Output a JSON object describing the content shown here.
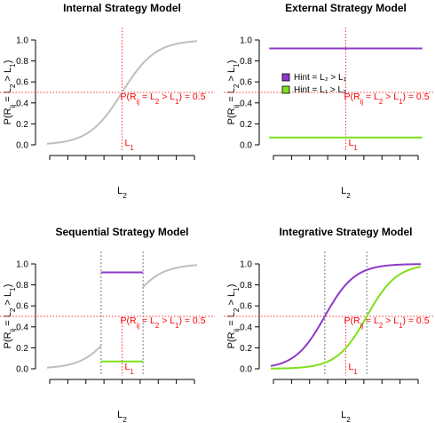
{
  "colors": {
    "grey": "#bebebe",
    "purple": "#8e3ac9",
    "green": "#7fe01a",
    "red": "#ff3030",
    "vline": "#7f7f7f"
  },
  "chart_data": [
    {
      "type": "line",
      "title": "Internal Strategy Model",
      "xlabel": "L₂",
      "ylabel": "P(R_ij = L₂ > L₁)",
      "yticks": [
        "0.0",
        "0.2",
        "0.4",
        "0.6",
        "0.8",
        "1.0"
      ],
      "ylim": [
        0,
        1
      ],
      "annotation": "P(R_ij = L₂ >  L₁) = 0.5",
      "l1_label": "L₁",
      "series": [
        {
          "color": "grey",
          "shape": "logistic",
          "midpoint": 0.5,
          "slope": 9
        }
      ]
    },
    {
      "type": "line",
      "title": "External Strategy Model",
      "xlabel": "L₂",
      "ylabel": "P(R_ij = L₂ > L₁)",
      "yticks": [
        "0.0",
        "0.2",
        "0.4",
        "0.6",
        "0.8",
        "1.0"
      ],
      "ylim": [
        0,
        1
      ],
      "annotation": "P(R_ij = L₂ >  L₁) = 0.5",
      "l1_label": "L₁",
      "legend": [
        "Hint = L₂ > L₁",
        "Hint = L₁ > L₂"
      ],
      "legend_position": "left",
      "series": [
        {
          "name": "Hint = L₂ > L₁",
          "color": "purple",
          "shape": "constant",
          "value": 0.92
        },
        {
          "name": "Hint = L₁ > L₂",
          "color": "green",
          "shape": "constant",
          "value": 0.07
        }
      ]
    },
    {
      "type": "line",
      "title": "Sequential Strategy Model",
      "xlabel": "L₂",
      "ylabel": "P(R_ij = L₂ > L₁)",
      "yticks": [
        "0.0",
        "0.2",
        "0.4",
        "0.6",
        "0.8",
        "1.0"
      ],
      "ylim": [
        0,
        1
      ],
      "annotation": "P(R_ij = L₂ >  L₁) = 0.5",
      "l1_label": "L₁",
      "series": [
        {
          "color": "grey",
          "shape": "logistic-left",
          "midpoint": 0.5,
          "slope": 9,
          "until": 0.36
        },
        {
          "color": "grey",
          "shape": "logistic-right",
          "midpoint": 0.5,
          "slope": 9,
          "from": 0.64
        },
        {
          "color": "purple",
          "shape": "constant",
          "value": 0.92,
          "from": 0.36,
          "until": 0.64
        },
        {
          "color": "green",
          "shape": "constant",
          "value": 0.07,
          "from": 0.36,
          "until": 0.64
        }
      ]
    },
    {
      "type": "line",
      "title": "Integrative Strategy Model",
      "xlabel": "L₂",
      "ylabel": "P(R_ij = L₂ > L₁)",
      "yticks": [
        "0.0",
        "0.2",
        "0.4",
        "0.6",
        "0.8",
        "1.0"
      ],
      "ylim": [
        0,
        1
      ],
      "annotation": "P(R_ij = L₂ >  L₁) = 0.5",
      "l1_label": "L₁",
      "series": [
        {
          "color": "purple",
          "shape": "logistic",
          "midpoint": 0.36,
          "slope": 10
        },
        {
          "color": "green",
          "shape": "logistic",
          "midpoint": 0.64,
          "slope": 10
        }
      ]
    }
  ]
}
